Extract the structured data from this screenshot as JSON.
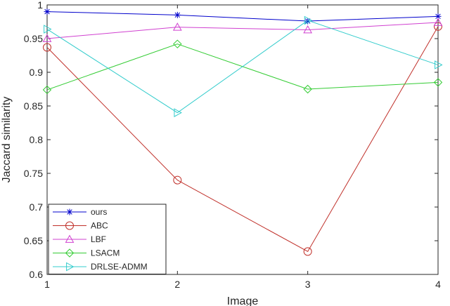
{
  "chart_data": {
    "type": "line",
    "xlabel": "Image",
    "ylabel": "Jaccard similarity",
    "x": [
      1,
      2,
      3,
      4
    ],
    "xlim": [
      1,
      4
    ],
    "ylim": [
      0.6,
      1
    ],
    "xticks": [
      "1",
      "2",
      "3",
      "4"
    ],
    "yticks": [
      "0.6",
      "0.65",
      "0.7",
      "0.75",
      "0.8",
      "0.85",
      "0.9",
      "0.95",
      "1"
    ],
    "grid": false,
    "legend_position": "bottom-left",
    "series": [
      {
        "name": "ours",
        "values": [
          0.99,
          0.985,
          0.976,
          0.983
        ],
        "color": "#0000cc",
        "marker": "asterisk"
      },
      {
        "name": "ABC",
        "values": [
          0.937,
          0.74,
          0.634,
          0.968
        ],
        "color": "#c0302a",
        "marker": "circle"
      },
      {
        "name": "LBF",
        "values": [
          0.95,
          0.967,
          0.963,
          0.974
        ],
        "color": "#d040d0",
        "marker": "triangle-up"
      },
      {
        "name": "LSACM",
        "values": [
          0.874,
          0.942,
          0.875,
          0.885
        ],
        "color": "#33cc33",
        "marker": "diamond"
      },
      {
        "name": "DRLSE-ADMM",
        "values": [
          0.964,
          0.84,
          0.977,
          0.911
        ],
        "color": "#33cccc",
        "marker": "triangle-right"
      }
    ]
  }
}
